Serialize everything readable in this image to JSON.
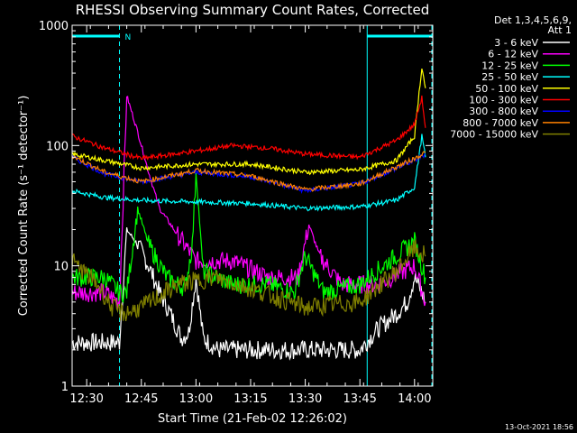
{
  "chart_data": {
    "type": "line",
    "title": "RHESSI Observing Summary Count Rates, Corrected",
    "xlabel": "Start Time (21-Feb-02 12:26:02)",
    "ylabel": "Corrected Count Rate (s⁻¹ detector⁻¹)",
    "y_scale": "log",
    "ylim": [
      1,
      1000
    ],
    "xlim": [
      "12:26",
      "14:05"
    ],
    "x_ticks": [
      "12:30",
      "12:45",
      "13:00",
      "13:15",
      "13:30",
      "13:45",
      "14:00"
    ],
    "y_ticks": [
      "1",
      "10",
      "100",
      "1000"
    ],
    "legend_header": [
      "Det 1,3,4,5,6,9,",
      "Att 1"
    ],
    "footer": "13-Oct-2021 18:56",
    "flags": [
      {
        "label": "N",
        "start": "12:26",
        "end": "12:39"
      },
      {
        "label": "",
        "start": "13:47",
        "end": "14:06"
      }
    ],
    "event_markers": [
      "12:39",
      "13:47",
      "14:06"
    ],
    "series": [
      {
        "name": "3 - 6 keV",
        "color": "#ffffff",
        "x": [
          "12:26",
          "12:35",
          "12:39",
          "12:41",
          "12:44",
          "12:47",
          "12:50",
          "12:53",
          "12:56",
          "12:58",
          "13:00",
          "13:02",
          "13:06",
          "13:15",
          "13:30",
          "13:45",
          "13:50",
          "13:55",
          "13:58",
          "14:00",
          "14:02",
          "14:03"
        ],
        "values": [
          2.3,
          2.3,
          2.3,
          20,
          15,
          10,
          6,
          4,
          2.5,
          2.8,
          8,
          2.5,
          2,
          2,
          2,
          2,
          3,
          4,
          5,
          8,
          6,
          5
        ]
      },
      {
        "name": "6 - 12 keV",
        "color": "#ff00ff",
        "x": [
          "12:26",
          "12:35",
          "12:39",
          "12:41",
          "12:44",
          "12:47",
          "12:50",
          "12:55",
          "13:00",
          "13:03",
          "13:10",
          "13:20",
          "13:28",
          "13:31",
          "13:34",
          "13:40",
          "13:50",
          "14:00",
          "14:03"
        ],
        "values": [
          6,
          6,
          5,
          260,
          130,
          60,
          30,
          18,
          11,
          11,
          11,
          8,
          8,
          22,
          12,
          7,
          7,
          10,
          5
        ]
      },
      {
        "name": "12 - 25 keV",
        "color": "#00ff00",
        "x": [
          "12:26",
          "12:35",
          "12:39",
          "12:41",
          "12:44",
          "12:47",
          "12:52",
          "12:57",
          "12:59",
          "13:00",
          "13:02",
          "13:10",
          "13:20",
          "13:27",
          "13:30",
          "13:35",
          "13:45",
          "14:00",
          "14:02",
          "14:03"
        ],
        "values": [
          8,
          8,
          6,
          6,
          30,
          15,
          8,
          6.5,
          15,
          60,
          9,
          7,
          7,
          6,
          12,
          6,
          7,
          16,
          10,
          8
        ]
      },
      {
        "name": "25 - 50 keV",
        "color": "#00ffff",
        "x": [
          "12:26",
          "12:35",
          "12:45",
          "13:00",
          "13:15",
          "13:30",
          "13:45",
          "13:55",
          "14:00",
          "14:02",
          "14:03"
        ],
        "values": [
          42,
          37,
          35,
          34,
          33,
          30,
          31,
          35,
          45,
          120,
          80
        ]
      },
      {
        "name": "50 - 100 keV",
        "color": "#ffff00",
        "x": [
          "12:26",
          "12:35",
          "12:45",
          "13:00",
          "13:15",
          "13:30",
          "13:45",
          "13:55",
          "14:00",
          "14:02",
          "14:03"
        ],
        "values": [
          85,
          75,
          65,
          70,
          70,
          60,
          63,
          75,
          120,
          450,
          300
        ]
      },
      {
        "name": "100 - 300 keV",
        "color": "#ff0000",
        "x": [
          "12:26",
          "12:35",
          "12:45",
          "13:00",
          "13:10",
          "13:20",
          "13:30",
          "13:45",
          "13:55",
          "14:00",
          "14:02",
          "14:03"
        ],
        "values": [
          120,
          95,
          78,
          90,
          100,
          95,
          85,
          80,
          110,
          150,
          250,
          140
        ]
      },
      {
        "name": "300 - 800 keV",
        "color": "#0000ff",
        "x": [
          "12:26",
          "12:35",
          "12:45",
          "13:00",
          "13:15",
          "13:30",
          "13:45",
          "14:00",
          "14:03"
        ],
        "values": [
          80,
          58,
          50,
          60,
          55,
          42,
          48,
          75,
          85
        ]
      },
      {
        "name": "800 - 7000 keV",
        "color": "#ff8000",
        "x": [
          "12:26",
          "12:35",
          "12:45",
          "13:00",
          "13:15",
          "13:30",
          "13:45",
          "14:00",
          "14:03"
        ],
        "values": [
          82,
          60,
          50,
          62,
          56,
          43,
          48,
          78,
          88
        ]
      },
      {
        "name": "7000 - 15000 keV",
        "color": "#808000",
        "x": [
          "12:26",
          "12:33",
          "12:37",
          "12:40",
          "12:45",
          "12:55",
          "13:05",
          "13:15",
          "13:30",
          "13:45",
          "13:55",
          "14:00",
          "14:03"
        ],
        "values": [
          11,
          7,
          4.5,
          4,
          4.5,
          7,
          8,
          6.5,
          4.5,
          5,
          9,
          14,
          12
        ]
      }
    ]
  }
}
